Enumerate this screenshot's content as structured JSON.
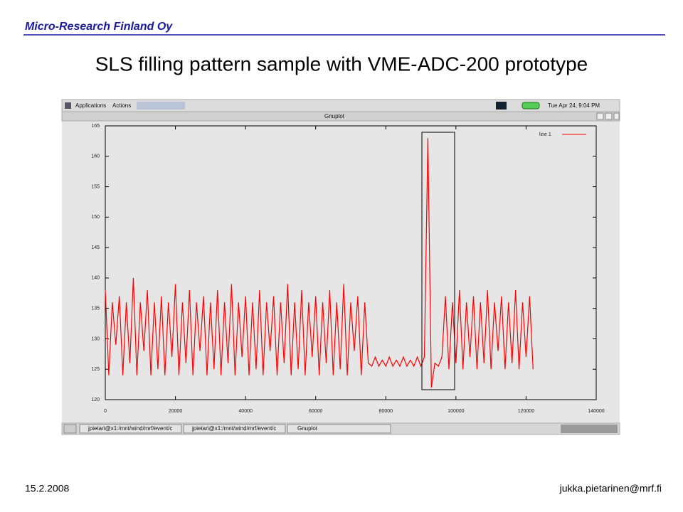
{
  "header": {
    "company": "Micro-Research Finland Oy",
    "title": "SLS filling pattern sample with VME-ADC-200 prototype"
  },
  "screenshot": {
    "menus": [
      "Applications",
      "Actions"
    ],
    "clock": "Tue Apr 24, 9:04 PM",
    "window_title": "Gnuplot",
    "taskbar": [
      "jpietari@x1:/mnt/wind/mrf/event/c",
      "jpietari@x1:/mnt/wind/mrf/event/c",
      "Gnuplot"
    ]
  },
  "chart_data": {
    "type": "line",
    "x": [
      0,
      1000,
      2000,
      3000,
      4000,
      5000,
      6000,
      7000,
      8000,
      9000,
      10000,
      11000,
      12000,
      13000,
      14000,
      15000,
      16000,
      17000,
      18000,
      19000,
      20000,
      21000,
      22000,
      23000,
      24000,
      25000,
      26000,
      27000,
      28000,
      29000,
      30000,
      31000,
      32000,
      33000,
      34000,
      35000,
      36000,
      37000,
      38000,
      39000,
      40000,
      41000,
      42000,
      43000,
      44000,
      45000,
      46000,
      47000,
      48000,
      49000,
      50000,
      51000,
      52000,
      53000,
      54000,
      55000,
      56000,
      57000,
      58000,
      59000,
      60000,
      61000,
      62000,
      63000,
      64000,
      65000,
      66000,
      67000,
      68000,
      69000,
      70000,
      71000,
      72000,
      73000,
      74000,
      75000,
      76000,
      77000,
      78000,
      79000,
      80000,
      81000,
      82000,
      83000,
      84000,
      85000,
      86000,
      87000,
      88000,
      89000,
      90000,
      91000,
      92000,
      93000,
      94000,
      95000,
      96000,
      97000,
      98000,
      99000,
      100000,
      101000,
      102000,
      103000,
      104000,
      105000,
      106000,
      107000,
      108000,
      109000,
      110000,
      111000,
      112000,
      113000,
      114000,
      115000,
      116000,
      117000,
      118000,
      119000,
      120000,
      121000,
      122000
    ],
    "series": [
      {
        "name": "line 1",
        "color": "#ff0000",
        "values": [
          138,
          124,
          136,
          129,
          137,
          124,
          136,
          126,
          140,
          124,
          136,
          128,
          138,
          124,
          136,
          125,
          137,
          124,
          136,
          127,
          139,
          124,
          136,
          126,
          138,
          124,
          136,
          128,
          137,
          124,
          136,
          125,
          138,
          124,
          136,
          126,
          139,
          124,
          136,
          127,
          137,
          124,
          136,
          125,
          138,
          124,
          136,
          128,
          137,
          124,
          136,
          126,
          139,
          124,
          136,
          125,
          138,
          124,
          136,
          127,
          137,
          124,
          136,
          126,
          138,
          124,
          136,
          125,
          139,
          124,
          136,
          128,
          137,
          124,
          136,
          126,
          125.5,
          127,
          125.5,
          126.5,
          125.5,
          127,
          125.5,
          126.5,
          125.5,
          127,
          125.5,
          126.5,
          125.5,
          127,
          125.5,
          127,
          163,
          122,
          126,
          125.5,
          127,
          137,
          125,
          136,
          126,
          138,
          125,
          136,
          127,
          137,
          125,
          136,
          126,
          138,
          125,
          136,
          128,
          137,
          125,
          136,
          126,
          138,
          125,
          136,
          127,
          137,
          125
        ]
      }
    ],
    "xlim": [
      0,
      140000
    ],
    "ylim": [
      120,
      165
    ],
    "xticks": [
      0,
      20000,
      40000,
      60000,
      80000,
      100000,
      120000,
      140000
    ],
    "yticks": [
      120,
      125,
      130,
      135,
      140,
      145,
      150,
      155,
      160,
      165
    ],
    "legend": "top-right"
  },
  "footer": {
    "date": "15.2.2008",
    "email": "jukka.pietarinen@mrf.fi"
  }
}
